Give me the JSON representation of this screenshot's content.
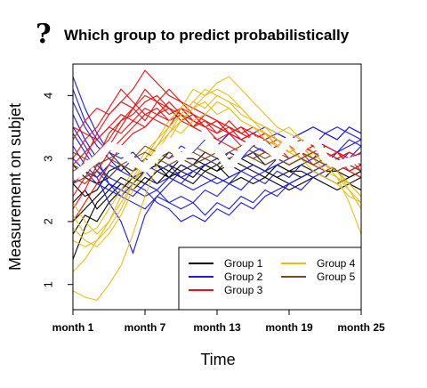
{
  "chart_data": {
    "type": "line",
    "title": "Which group to predict probabilistically",
    "title_icon": "question-mark-icon",
    "xlabel": "Time",
    "ylabel": "Measurement on subjet",
    "x_ticks": [
      "month 1",
      "month 7",
      "month 13",
      "month 19",
      "month 25"
    ],
    "y_ticks": [
      1,
      2,
      3,
      4
    ],
    "xlim": [
      1,
      25
    ],
    "ylim": [
      0.6,
      4.5
    ],
    "grid": false,
    "legend_position": "bottom-right",
    "series": [
      {
        "name": "Group 1",
        "color": "#000000",
        "lines": [
          [
            2.6,
            2.4,
            2.5,
            2.8,
            2.9,
            2.7,
            2.8,
            2.9,
            2.7,
            2.8,
            2.9,
            2.8,
            2.9,
            2.7,
            2.8,
            2.9,
            2.8,
            2.7,
            2.8,
            2.8,
            2.7,
            2.8,
            2.8,
            2.6,
            2.7
          ],
          [
            1.4,
            1.9,
            2.3,
            2.5,
            2.7,
            2.6,
            2.8,
            2.9,
            2.8,
            3.0,
            3.0,
            2.9,
            2.8,
            2.9,
            3.0,
            2.9,
            2.8,
            2.7,
            2.6,
            2.7,
            2.8,
            2.7,
            2.6,
            2.7,
            2.8
          ],
          [
            2.0,
            2.2,
            2.4,
            2.6,
            2.5,
            2.7,
            2.6,
            2.8,
            2.7,
            2.9,
            2.8,
            2.9,
            3.0,
            2.9,
            2.8,
            2.9,
            2.8,
            2.9,
            2.8,
            2.9,
            2.8,
            2.7,
            2.9,
            2.8,
            2.9
          ],
          [
            2.9,
            2.7,
            2.6,
            2.7,
            2.9,
            2.8,
            3.0,
            2.9,
            3.1,
            3.0,
            2.9,
            3.1,
            3.0,
            2.9,
            3.0,
            3.1,
            2.9,
            3.0,
            2.9,
            3.0,
            3.1,
            2.9,
            3.0,
            2.9,
            2.8
          ],
          [
            2.3,
            2.5,
            2.2,
            2.4,
            2.6,
            2.5,
            2.7,
            2.6,
            2.8,
            2.7,
            2.6,
            2.8,
            2.7,
            2.6,
            2.7,
            2.6,
            2.7,
            2.6,
            2.5,
            2.6,
            2.7,
            2.6,
            2.5,
            2.6,
            2.5
          ],
          [
            1.8,
            2.1,
            2.0,
            2.3,
            2.5,
            2.7,
            2.6,
            2.8,
            2.9,
            2.8,
            2.7,
            2.9,
            2.8,
            3.0,
            2.9,
            2.8,
            2.7,
            2.9,
            2.8,
            2.7,
            2.8,
            2.9,
            2.8,
            2.7,
            2.8
          ]
        ]
      },
      {
        "name": "Group 2",
        "color": "#1a1ae6",
        "lines": [
          [
            4.3,
            3.8,
            3.4,
            3.1,
            2.9,
            2.8,
            2.9,
            2.8,
            2.9,
            2.7,
            2.8,
            2.9,
            3.0,
            3.1,
            3.0,
            3.1,
            3.2,
            3.1,
            3.2,
            3.3,
            3.2,
            3.4,
            3.3,
            3.5,
            3.4
          ],
          [
            3.9,
            3.5,
            3.2,
            3.0,
            2.8,
            2.7,
            2.8,
            2.6,
            2.7,
            2.6,
            2.5,
            2.6,
            2.7,
            2.6,
            2.8,
            2.7,
            2.8,
            2.9,
            3.0,
            3.1,
            3.0,
            3.2,
            3.1,
            3.3,
            3.2
          ],
          [
            3.5,
            3.2,
            2.9,
            2.7,
            2.6,
            2.5,
            2.4,
            2.5,
            2.3,
            2.4,
            2.3,
            2.5,
            2.4,
            2.6,
            2.5,
            2.7,
            2.6,
            2.8,
            2.7,
            2.9,
            3.0,
            2.9,
            3.1,
            3.0,
            3.2
          ],
          [
            3.7,
            3.3,
            3.0,
            2.6,
            2.4,
            2.3,
            2.2,
            2.4,
            2.3,
            2.2,
            2.3,
            2.1,
            2.3,
            2.2,
            2.4,
            2.3,
            2.5,
            2.4,
            2.6,
            2.5,
            2.7,
            2.8,
            2.9,
            3.1,
            3.0
          ],
          [
            3.2,
            2.9,
            2.7,
            2.3,
            2.0,
            1.5,
            2.1,
            2.4,
            2.6,
            2.8,
            2.9,
            3.0,
            2.9,
            3.1,
            3.0,
            3.2,
            3.1,
            3.2,
            3.3,
            3.2,
            3.3,
            3.2,
            3.1,
            3.2,
            3.3
          ],
          [
            4.1,
            3.6,
            3.3,
            3.1,
            3.0,
            3.1,
            2.9,
            3.0,
            3.2,
            3.1,
            3.2,
            3.3,
            3.2,
            3.4,
            3.3,
            3.4,
            3.5,
            3.4,
            3.3,
            3.4,
            3.5,
            3.4,
            3.3,
            3.5,
            3.4
          ],
          [
            3.4,
            3.1,
            2.8,
            2.6,
            2.5,
            2.4,
            2.6,
            2.5,
            2.7,
            2.6,
            2.8,
            2.7,
            2.6,
            2.7,
            2.8,
            2.9,
            2.8,
            3.0,
            2.9,
            3.0,
            2.9,
            3.0,
            3.1,
            3.0,
            2.9
          ],
          [
            3.0,
            2.8,
            2.6,
            2.5,
            2.4,
            2.6,
            2.5,
            2.3,
            2.2,
            2.0,
            2.1,
            2.0,
            2.2,
            2.1,
            2.3,
            2.2,
            2.4,
            2.5,
            2.6,
            2.7,
            2.8,
            2.9,
            3.0,
            2.9,
            3.1
          ],
          [
            2.6,
            2.8,
            2.7,
            2.9,
            2.8,
            3.0,
            2.9,
            3.1,
            3.0,
            3.2,
            3.1,
            3.3,
            3.2,
            3.4,
            3.3,
            3.2,
            3.3,
            3.4,
            3.3,
            3.4,
            3.5,
            3.4,
            3.5,
            3.4,
            3.3
          ]
        ]
      },
      {
        "name": "Group 3",
        "color": "#ee1111",
        "lines": [
          [
            2.6,
            3.0,
            3.4,
            3.7,
            3.9,
            4.1,
            4.4,
            4.2,
            4.0,
            3.9,
            3.8,
            3.7,
            3.6,
            3.5,
            3.4,
            3.5,
            3.4,
            3.3,
            3.2,
            3.3,
            3.2,
            3.1,
            3.0,
            3.1,
            3.0
          ],
          [
            2.2,
            2.5,
            2.9,
            3.2,
            3.5,
            3.8,
            4.0,
            3.9,
            4.1,
            3.9,
            3.7,
            3.6,
            3.5,
            3.4,
            3.5,
            3.3,
            3.4,
            3.2,
            3.3,
            3.1,
            3.2,
            3.0,
            3.1,
            2.9,
            3.0
          ],
          [
            3.0,
            3.3,
            3.5,
            3.8,
            4.1,
            3.9,
            3.7,
            3.8,
            3.6,
            3.7,
            3.5,
            3.6,
            3.4,
            3.5,
            3.3,
            3.4,
            3.2,
            3.3,
            3.1,
            3.2,
            3.0,
            3.1,
            2.9,
            3.0,
            2.8
          ],
          [
            2.8,
            2.9,
            3.1,
            3.3,
            3.6,
            3.7,
            3.9,
            4.0,
            3.8,
            3.6,
            3.7,
            3.5,
            3.6,
            3.4,
            3.3,
            3.2,
            3.3,
            3.1,
            3.2,
            3.0,
            3.1,
            2.9,
            3.0,
            2.8,
            2.7
          ],
          [
            2.4,
            2.7,
            3.0,
            3.4,
            3.6,
            3.8,
            3.6,
            3.9,
            3.7,
            3.8,
            3.6,
            3.5,
            3.3,
            3.4,
            3.2,
            3.3,
            3.1,
            3.2,
            3.0,
            3.1,
            2.9,
            3.0,
            2.8,
            2.9,
            3.0
          ],
          [
            3.3,
            3.6,
            3.8,
            3.7,
            3.9,
            3.8,
            4.1,
            3.9,
            3.8,
            3.7,
            3.5,
            3.4,
            3.3,
            3.2,
            3.1,
            3.0,
            3.1,
            3.0,
            2.9,
            3.0,
            2.9,
            2.8,
            2.9,
            2.8,
            2.7
          ],
          [
            2.0,
            2.3,
            2.6,
            2.9,
            3.2,
            3.4,
            3.5,
            3.7,
            3.8,
            3.6,
            3.5,
            3.7,
            3.6,
            3.4,
            3.5,
            3.3,
            3.2,
            3.1,
            3.2,
            3.0,
            2.9,
            3.0,
            2.9,
            2.8,
            2.9
          ],
          [
            2.7,
            2.6,
            2.8,
            3.1,
            3.3,
            3.5,
            3.7,
            3.6,
            3.5,
            3.8,
            3.6,
            3.5,
            3.4,
            3.6,
            3.4,
            3.3,
            3.4,
            3.2,
            3.1,
            3.2,
            3.1,
            3.0,
            3.1,
            2.9,
            2.8
          ],
          [
            3.5,
            3.4,
            3.3,
            3.5,
            3.7,
            3.6,
            3.8,
            3.7,
            3.9,
            3.7,
            3.6,
            3.5,
            3.6,
            3.5,
            3.4,
            3.3,
            3.4,
            3.3,
            3.2,
            3.1,
            3.2,
            3.1,
            3.0,
            3.1,
            3.0
          ],
          [
            2.9,
            3.1,
            3.3,
            3.5,
            3.4,
            3.6,
            3.5,
            3.7,
            3.6,
            3.8,
            3.7,
            3.6,
            3.5,
            3.4,
            3.5,
            3.4,
            3.3,
            3.2,
            3.3,
            3.2,
            3.1,
            3.2,
            3.1,
            3.0,
            3.1
          ]
        ]
      },
      {
        "name": "Group 4",
        "color": "#e6bf1a",
        "lines": [
          [
            0.9,
            0.8,
            0.75,
            1.0,
            1.3,
            1.8,
            2.4,
            2.9,
            3.3,
            3.6,
            3.8,
            4.0,
            4.1,
            4.0,
            3.8,
            3.6,
            3.5,
            3.4,
            3.5,
            3.3,
            3.1,
            2.9,
            2.7,
            2.3,
            1.8
          ],
          [
            1.7,
            1.6,
            1.7,
            1.9,
            2.2,
            2.6,
            3.0,
            3.3,
            3.6,
            3.8,
            4.1,
            4.0,
            4.2,
            4.3,
            4.1,
            3.9,
            3.7,
            3.5,
            3.4,
            3.3,
            3.1,
            3.0,
            2.8,
            2.5,
            2.2
          ],
          [
            2.3,
            2.0,
            1.8,
            2.0,
            2.3,
            2.6,
            2.9,
            3.2,
            3.4,
            3.6,
            3.8,
            3.9,
            3.7,
            3.8,
            3.6,
            3.5,
            3.3,
            3.2,
            3.3,
            3.1,
            3.0,
            2.9,
            2.7,
            2.6,
            2.4
          ],
          [
            1.9,
            1.7,
            1.6,
            1.8,
            2.1,
            2.5,
            2.8,
            3.1,
            3.4,
            3.7,
            3.9,
            4.1,
            4.0,
            3.9,
            3.8,
            3.6,
            3.4,
            3.3,
            3.1,
            3.2,
            3.0,
            2.8,
            2.7,
            2.5,
            2.3
          ],
          [
            1.2,
            1.4,
            1.7,
            2.0,
            2.4,
            2.7,
            3.0,
            3.2,
            3.5,
            3.7,
            3.9,
            3.8,
            4.0,
            3.9,
            3.7,
            3.6,
            3.5,
            3.3,
            3.2,
            3.0,
            3.1,
            2.9,
            2.8,
            2.6,
            2.4
          ],
          [
            2.1,
            1.8,
            1.9,
            2.2,
            2.5,
            2.8,
            3.1,
            3.3,
            3.5,
            3.4,
            3.6,
            3.7,
            3.9,
            3.8,
            3.6,
            3.5,
            3.4,
            3.2,
            3.1,
            3.0,
            2.8,
            2.7,
            2.6,
            2.4,
            2.3
          ]
        ]
      },
      {
        "name": "Group 5",
        "color": "#7a4a1e",
        "lines": [
          [
            2.9,
            2.8,
            2.9,
            3.0,
            2.9,
            3.0,
            3.1,
            3.0,
            3.1,
            3.0,
            2.9,
            3.0,
            3.1,
            3.0,
            3.1,
            3.0,
            3.1,
            3.0,
            2.9,
            3.0,
            3.1,
            3.0,
            2.9,
            3.0,
            2.9
          ],
          [
            2.6,
            2.7,
            2.8,
            2.7,
            2.9,
            2.8,
            2.9,
            3.0,
            2.9,
            3.0,
            3.1,
            3.0,
            2.9,
            3.0,
            3.1,
            3.0,
            2.9,
            3.0,
            2.9,
            3.0,
            2.9,
            3.0,
            2.8,
            2.9,
            2.8
          ],
          [
            3.1,
            3.0,
            2.9,
            3.0,
            3.1,
            3.0,
            3.2,
            3.1,
            3.0,
            3.1,
            3.2,
            3.1,
            3.0,
            3.1,
            3.2,
            3.1,
            3.0,
            3.1,
            3.0,
            3.1,
            3.0,
            2.9,
            3.0,
            2.9,
            3.0
          ]
        ]
      },
      {
        "name": "",
        "color": "#ffffff",
        "lines": [
          [
            2.7,
            2.85,
            3.0,
            3.2,
            3.15,
            2.95,
            2.85,
            3.05,
            3.25,
            3.0,
            3.2,
            3.4,
            3.15,
            2.85,
            3.1,
            3.3,
            3.2,
            3.05,
            3.3,
            3.15,
            3.35,
            3.0,
            2.9,
            2.95,
            3.0
          ]
        ]
      }
    ]
  }
}
